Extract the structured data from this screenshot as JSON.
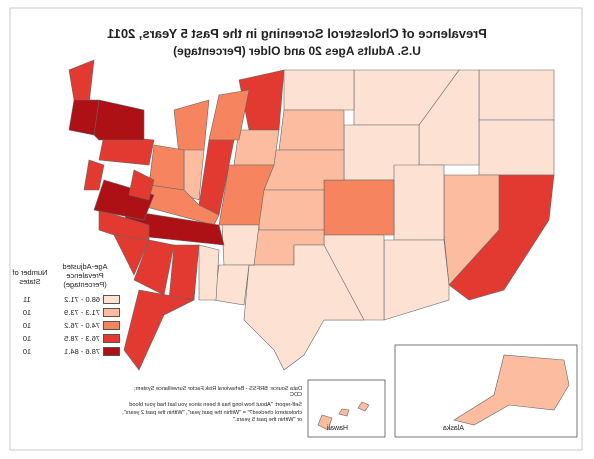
{
  "title": "Prevalence of Cholesterol Screening in the Past 5 Years, 2011",
  "subtitle": "U.S. Adults Ages 20 and Older (Percentage)",
  "legend": {
    "header": "Age-Adjusted Prevalence (Percentage)",
    "count_header": "Number of States",
    "bins": [
      {
        "label": "68.0 - 71.2",
        "count": 11,
        "color": "#fde2d4"
      },
      {
        "label": "71.3 - 73.9",
        "count": 10,
        "color": "#fbbc9f"
      },
      {
        "label": "74.0 - 76.2",
        "count": 10,
        "color": "#f6845f"
      },
      {
        "label": "76.3 - 78.5",
        "count": 10,
        "color": "#e23a30"
      },
      {
        "label": "78.6 - 84.1",
        "count": 10,
        "color": "#ad1116"
      }
    ]
  },
  "insets": {
    "hawaii": "Hawaii",
    "alaska": "Alaska"
  },
  "source": "Data Source: BRFSS - Behavioral Risk Factor Surveillance System; CDC",
  "note": "Self-report: \"About how long has it been since you last had your blood cholesterol checked?\" = \"Within the past year\", \"Within the past 2 years\", or \"Within the past 5 years.\""
}
